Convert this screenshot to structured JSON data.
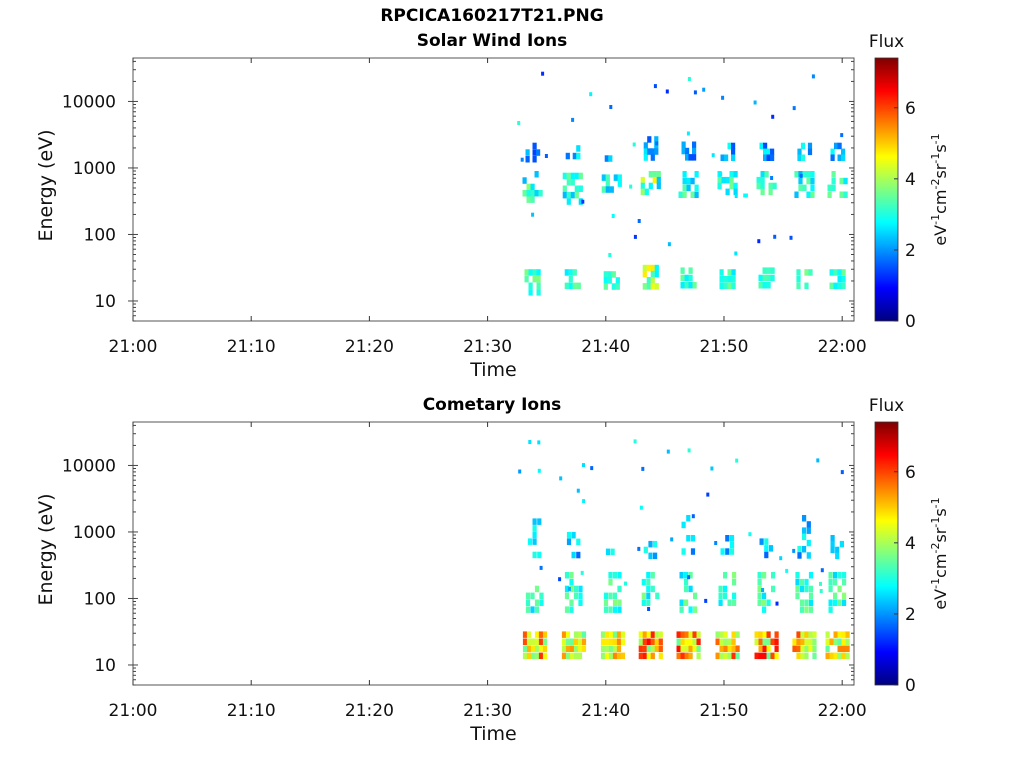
{
  "page": {
    "title": "RPCICA160217T21.PNG"
  },
  "colormap": {
    "name": "jet",
    "stops": [
      "#00007f",
      "#0000ff",
      "#0080ff",
      "#00ffff",
      "#80ff80",
      "#ffff00",
      "#ff8000",
      "#ff0000",
      "#7f0000"
    ]
  },
  "chart_data": [
    {
      "type": "heatmap",
      "title": "Solar Wind Ions",
      "xlabel": "Time",
      "ylabel": "Energy (eV)",
      "xlim": [
        "21:00",
        "22:01"
      ],
      "xticks": [
        "21:00",
        "21:10",
        "21:20",
        "21:30",
        "21:40",
        "21:50",
        "22:00"
      ],
      "ylim": [
        5,
        45000
      ],
      "yscale": "log",
      "yticks": [
        10,
        100,
        1000,
        10000
      ],
      "ytick_labels": [
        "10",
        "100",
        "1000",
        "10000"
      ],
      "colorbar": {
        "label": "Flux",
        "units": "eV-1cm-2sr-1s-1",
        "range": [
          0,
          7.4
        ],
        "ticks": [
          0,
          2,
          4,
          6
        ],
        "tick_labels": [
          "0",
          "2",
          "4",
          "6"
        ]
      },
      "bursts": [
        {
          "time": "21:33.8",
          "low_eV": [
            12,
            30
          ],
          "mid_eV": [
            300,
            900
          ],
          "high_eV": [
            1200,
            2400
          ],
          "peak_flux": 3.8
        },
        {
          "time": "21:37.2",
          "low_eV": [
            15,
            30
          ],
          "mid_eV": [
            280,
            850
          ],
          "high_eV": [
            1300,
            2200
          ],
          "peak_flux": 3.6
        },
        {
          "time": "21:40.5",
          "low_eV": [
            15,
            28
          ],
          "mid_eV": [
            350,
            800
          ],
          "high_eV": [
            1200,
            2000
          ],
          "peak_flux": 3.5
        },
        {
          "time": "21:43.8",
          "low_eV": [
            15,
            35
          ],
          "mid_eV": [
            400,
            900
          ],
          "high_eV": [
            1300,
            3000
          ],
          "peak_flux": 4.8
        },
        {
          "time": "21:47.0",
          "low_eV": [
            15,
            32
          ],
          "mid_eV": [
            350,
            900
          ],
          "high_eV": [
            1300,
            2500
          ],
          "peak_flux": 3.8
        },
        {
          "time": "21:50.3",
          "low_eV": [
            15,
            30
          ],
          "mid_eV": [
            400,
            900
          ],
          "high_eV": [
            1300,
            2400
          ],
          "peak_flux": 3.6
        },
        {
          "time": "21:53.6",
          "low_eV": [
            15,
            32
          ],
          "mid_eV": [
            400,
            900
          ],
          "high_eV": [
            1300,
            2400
          ],
          "peak_flux": 3.6
        },
        {
          "time": "21:56.8",
          "low_eV": [
            15,
            30
          ],
          "mid_eV": [
            350,
            900
          ],
          "high_eV": [
            1300,
            2400
          ],
          "peak_flux": 3.8
        },
        {
          "time": "21:59.6",
          "low_eV": [
            15,
            30
          ],
          "mid_eV": [
            350,
            900
          ],
          "high_eV": [
            1300,
            2400
          ],
          "peak_flux": 3.6
        }
      ]
    },
    {
      "type": "heatmap",
      "title": "Cometary Ions",
      "xlabel": "Time",
      "ylabel": "Energy (eV)",
      "xlim": [
        "21:00",
        "22:01"
      ],
      "xticks": [
        "21:00",
        "21:10",
        "21:20",
        "21:30",
        "21:40",
        "21:50",
        "22:00"
      ],
      "ylim": [
        5,
        45000
      ],
      "yscale": "log",
      "yticks": [
        10,
        100,
        1000,
        10000
      ],
      "ytick_labels": [
        "10",
        "100",
        "1000",
        "10000"
      ],
      "colorbar": {
        "label": "Flux",
        "units": "eV-1cm-2sr-1s-1",
        "range": [
          0,
          7.4
        ],
        "ticks": [
          0,
          2,
          4,
          6
        ],
        "tick_labels": [
          "0",
          "2",
          "4",
          "6"
        ]
      },
      "bursts": [
        {
          "time": "21:34.0",
          "low_eV": [
            12,
            32
          ],
          "mid_eV": [
            60,
            250
          ],
          "high_eV": [
            400,
            1600
          ],
          "peak_flux": 6.2
        },
        {
          "time": "21:37.3",
          "low_eV": [
            12,
            32
          ],
          "mid_eV": [
            60,
            250
          ],
          "high_eV": [
            400,
            1000
          ],
          "peak_flux": 5.5
        },
        {
          "time": "21:40.6",
          "low_eV": [
            12,
            32
          ],
          "mid_eV": [
            60,
            250
          ],
          "high_eV": [
            450,
            700
          ],
          "peak_flux": 5.8
        },
        {
          "time": "21:43.8",
          "low_eV": [
            12,
            32
          ],
          "mid_eV": [
            60,
            250
          ],
          "high_eV": [
            400,
            900
          ],
          "peak_flux": 6.8
        },
        {
          "time": "21:47.0",
          "low_eV": [
            12,
            32
          ],
          "mid_eV": [
            60,
            250
          ],
          "high_eV": [
            450,
            1800
          ],
          "peak_flux": 6.5
        },
        {
          "time": "21:50.3",
          "low_eV": [
            12,
            32
          ],
          "mid_eV": [
            60,
            250
          ],
          "high_eV": [
            450,
            900
          ],
          "peak_flux": 6.2
        },
        {
          "time": "21:53.6",
          "low_eV": [
            12,
            32
          ],
          "mid_eV": [
            60,
            250
          ],
          "high_eV": [
            400,
            800
          ],
          "peak_flux": 6.8
        },
        {
          "time": "21:56.8",
          "low_eV": [
            12,
            32
          ],
          "mid_eV": [
            60,
            250
          ],
          "high_eV": [
            400,
            1800
          ],
          "peak_flux": 6.0
        },
        {
          "time": "21:59.6",
          "low_eV": [
            12,
            32
          ],
          "mid_eV": [
            60,
            250
          ],
          "high_eV": [
            400,
            900
          ],
          "peak_flux": 5.8
        }
      ]
    }
  ]
}
